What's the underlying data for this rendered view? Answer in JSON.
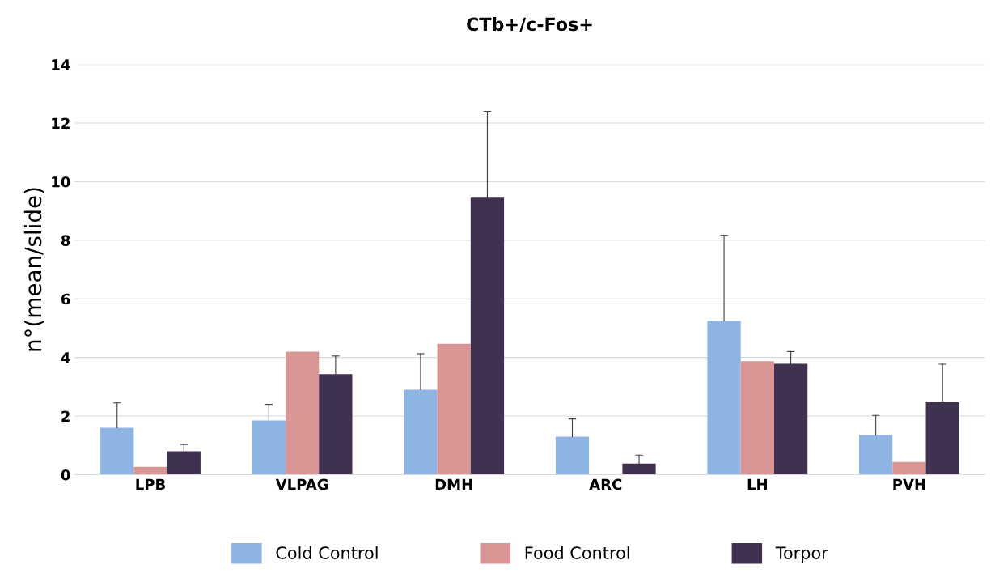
{
  "chart_data": {
    "type": "bar",
    "title": "CTb+/c-Fos+",
    "ylabel": "n°(mean/slide)",
    "categories": [
      "LPB",
      "VLPAG",
      "DMH",
      "ARC",
      "LH",
      "PVH"
    ],
    "series": [
      {
        "name": "Cold Control",
        "color": "#8eb4e3",
        "values": [
          1.6,
          1.85,
          2.9,
          1.3,
          5.25,
          1.35
        ],
        "errors": [
          [
            1.6,
            2.45
          ],
          [
            1.85,
            2.4
          ],
          [
            2.9,
            4.13
          ],
          [
            1.3,
            1.9
          ],
          [
            5.25,
            8.17
          ],
          [
            1.35,
            2.02
          ]
        ]
      },
      {
        "name": "Food Control",
        "color": "#d99694",
        "values": [
          0.27,
          4.2,
          4.47,
          0,
          3.87,
          0.43
        ]
      },
      {
        "name": "Torpor",
        "color": "#403151",
        "values": [
          0.8,
          3.43,
          9.45,
          0.38,
          3.78,
          2.47
        ],
        "errors": [
          [
            0.8,
            1.03
          ],
          [
            3.43,
            4.05
          ],
          [
            9.45,
            12.4
          ],
          [
            0.38,
            0.67
          ],
          [
            3.78,
            4.2
          ],
          [
            2.47,
            3.77
          ]
        ]
      }
    ],
    "ylim": [
      0,
      14
    ],
    "yticks": [
      0,
      2,
      4,
      6,
      8,
      10,
      12,
      14
    ],
    "grid": "y",
    "legend": "bottom"
  }
}
